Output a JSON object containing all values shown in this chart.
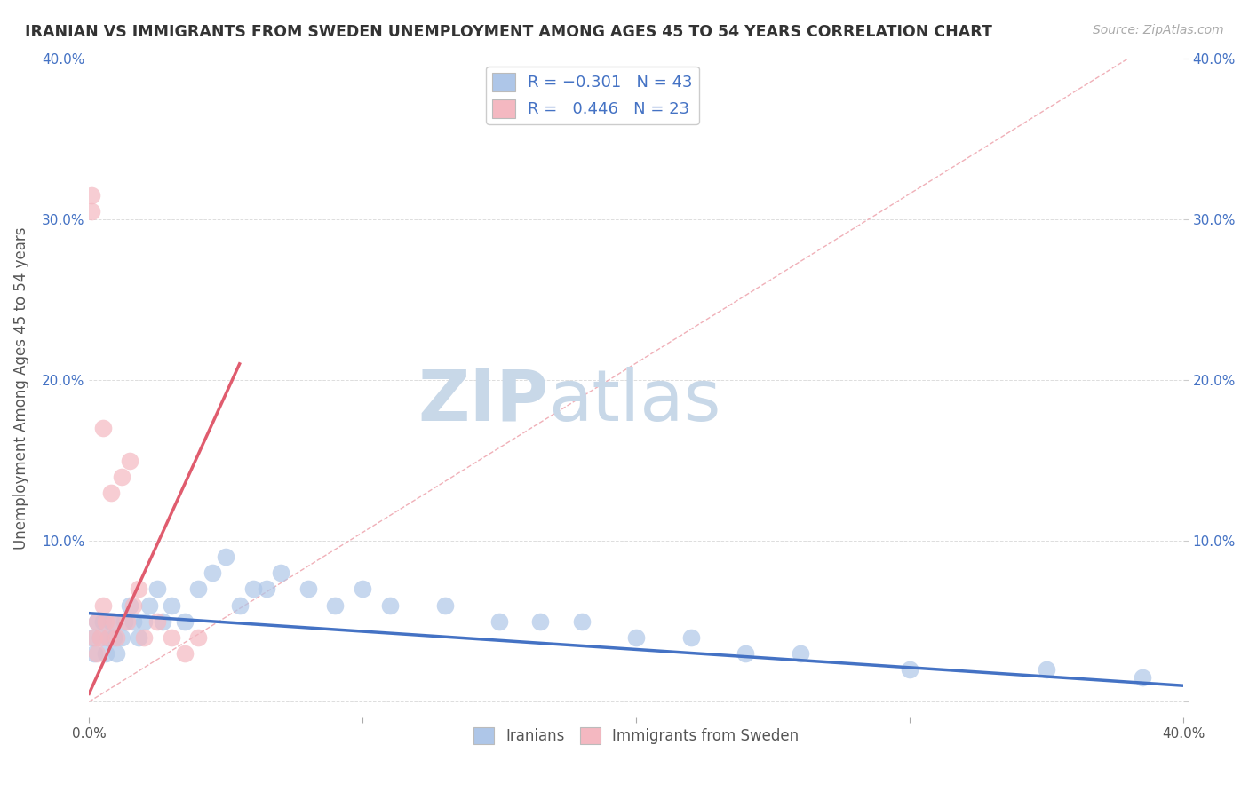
{
  "title": "IRANIAN VS IMMIGRANTS FROM SWEDEN UNEMPLOYMENT AMONG AGES 45 TO 54 YEARS CORRELATION CHART",
  "source": "Source: ZipAtlas.com",
  "ylabel": "Unemployment Among Ages 45 to 54 years",
  "xlim": [
    0.0,
    0.4
  ],
  "ylim": [
    -0.01,
    0.4
  ],
  "xticks": [
    0.0,
    0.1,
    0.2,
    0.3,
    0.4
  ],
  "yticks": [
    0.0,
    0.1,
    0.2,
    0.3,
    0.4
  ],
  "xtick_labels_bottom": [
    "0.0%",
    "",
    "",
    "",
    "40.0%"
  ],
  "ytick_labels_left": [
    "",
    "10.0%",
    "20.0%",
    "30.0%",
    "40.0%"
  ],
  "ytick_labels_right": [
    "",
    "10.0%",
    "20.0%",
    "30.0%",
    "40.0%"
  ],
  "legend_labels": [
    "Iranians",
    "Immigrants from Sweden"
  ],
  "blue_color": "#aec6e8",
  "pink_color": "#f4b8c1",
  "blue_line_color": "#4472c4",
  "pink_line_color": "#e05c6e",
  "diag_color": "#f0b0b8",
  "watermark_zip": "ZIP",
  "watermark_atlas": "atlas",
  "watermark_color": "#c8d8e8",
  "iranians_x": [
    0.001,
    0.002,
    0.003,
    0.004,
    0.005,
    0.006,
    0.007,
    0.008,
    0.009,
    0.01,
    0.012,
    0.013,
    0.015,
    0.016,
    0.018,
    0.02,
    0.022,
    0.025,
    0.027,
    0.03,
    0.035,
    0.04,
    0.045,
    0.05,
    0.055,
    0.06,
    0.065,
    0.07,
    0.08,
    0.09,
    0.1,
    0.11,
    0.13,
    0.15,
    0.165,
    0.18,
    0.2,
    0.22,
    0.24,
    0.26,
    0.3,
    0.35,
    0.385
  ],
  "iranians_y": [
    0.04,
    0.03,
    0.05,
    0.04,
    0.05,
    0.03,
    0.04,
    0.05,
    0.04,
    0.03,
    0.04,
    0.05,
    0.06,
    0.05,
    0.04,
    0.05,
    0.06,
    0.07,
    0.05,
    0.06,
    0.05,
    0.07,
    0.08,
    0.09,
    0.06,
    0.07,
    0.07,
    0.08,
    0.07,
    0.06,
    0.07,
    0.06,
    0.06,
    0.05,
    0.05,
    0.05,
    0.04,
    0.04,
    0.03,
    0.03,
    0.02,
    0.02,
    0.015
  ],
  "sweden_x": [
    0.001,
    0.001,
    0.002,
    0.003,
    0.003,
    0.004,
    0.005,
    0.005,
    0.006,
    0.007,
    0.008,
    0.009,
    0.01,
    0.012,
    0.014,
    0.015,
    0.016,
    0.018,
    0.02,
    0.025,
    0.03,
    0.035,
    0.04
  ],
  "sweden_y": [
    0.305,
    0.315,
    0.04,
    0.03,
    0.05,
    0.04,
    0.06,
    0.17,
    0.05,
    0.04,
    0.13,
    0.05,
    0.04,
    0.14,
    0.05,
    0.15,
    0.06,
    0.07,
    0.04,
    0.05,
    0.04,
    0.03,
    0.04
  ],
  "blue_trend_x": [
    0.0,
    0.4
  ],
  "blue_trend_y": [
    0.055,
    0.01
  ],
  "pink_trend_x": [
    0.0,
    0.055
  ],
  "pink_trend_y": [
    0.005,
    0.21
  ]
}
